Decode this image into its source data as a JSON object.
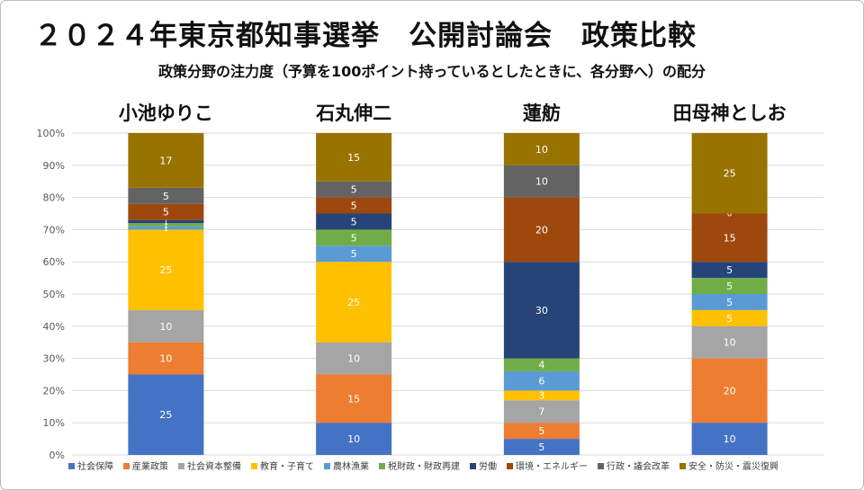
{
  "header": {
    "title": "２０２４年東京都知事選挙　公開討論会　政策比較",
    "subtitle": "政策分野の注力度（予算を100ポイント持っているとしたときに、各分野へ）の配分"
  },
  "chart_data": {
    "type": "bar",
    "stacked": true,
    "categories": [
      "小池ゆりこ",
      "石丸伸二",
      "蓮舫",
      "田母神としお"
    ],
    "ylim": [
      0,
      100
    ],
    "yticks": [
      "0%",
      "10%",
      "20%",
      "30%",
      "40%",
      "50%",
      "60%",
      "70%",
      "80%",
      "90%",
      "100%"
    ],
    "grid": true,
    "legend_position": "bottom",
    "series": [
      {
        "name": "社会保障",
        "color": "#4472C4",
        "values": [
          25,
          10,
          5,
          10
        ]
      },
      {
        "name": "産業政策",
        "color": "#ED7D31",
        "values": [
          10,
          15,
          5,
          20
        ]
      },
      {
        "name": "社会資本整備",
        "color": "#A5A5A5",
        "values": [
          10,
          10,
          7,
          10
        ]
      },
      {
        "name": "教育・子育て",
        "color": "#FFC000",
        "values": [
          25,
          25,
          3,
          5
        ]
      },
      {
        "name": "農林漁業",
        "color": "#5B9BD5",
        "values": [
          1,
          5,
          6,
          5
        ]
      },
      {
        "name": "税財政・財政再建",
        "color": "#70AD47",
        "values": [
          1,
          5,
          4,
          5
        ]
      },
      {
        "name": "労働",
        "color": "#264478",
        "values": [
          1,
          5,
          30,
          5
        ]
      },
      {
        "name": "環境・エネルギー",
        "color": "#9E480E",
        "values": [
          5,
          5,
          20,
          15
        ]
      },
      {
        "name": "行政・議会改革",
        "color": "#636363",
        "values": [
          5,
          5,
          10,
          0
        ]
      },
      {
        "name": "安全・防災・震災復興",
        "color": "#997300",
        "values": [
          17,
          15,
          10,
          25
        ]
      }
    ]
  }
}
